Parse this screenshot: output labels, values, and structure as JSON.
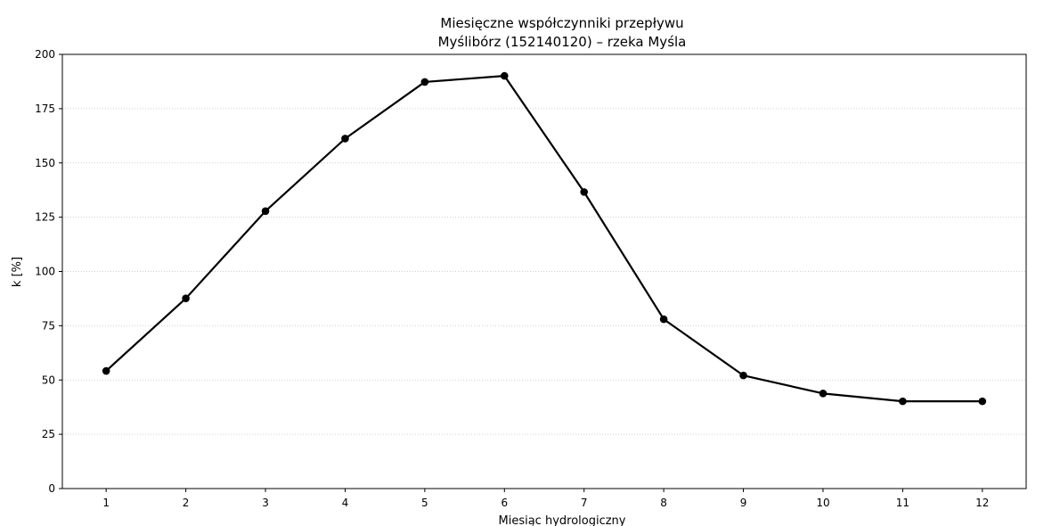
{
  "chart_data": {
    "type": "line",
    "title": "Miesięczne współczynniki przepływu",
    "subtitle": "Myślibórz (152140120) – rzeka Myśla",
    "xlabel": "Miesiąc hydrologiczny",
    "ylabel": "k [%]",
    "x": [
      1,
      2,
      3,
      4,
      5,
      6,
      7,
      8,
      9,
      10,
      11,
      12
    ],
    "x_ticks": [
      "1",
      "2",
      "3",
      "4",
      "5",
      "6",
      "7",
      "8",
      "9",
      "10",
      "11",
      "12"
    ],
    "xlim": [
      0.45,
      12.55
    ],
    "ylim": [
      0,
      200
    ],
    "y_ticks": [
      0,
      25,
      50,
      75,
      100,
      125,
      150,
      175,
      200
    ],
    "y_tick_labels": [
      "0",
      "25",
      "50",
      "75",
      "100",
      "125",
      "150",
      "175",
      "200"
    ],
    "grid": {
      "y": true,
      "x": false,
      "style": "dotted"
    },
    "series": [
      {
        "values": [
          54.2,
          87.6,
          127.8,
          161.2,
          187.3,
          190.1,
          136.6,
          78.0,
          52.1,
          43.8,
          40.2,
          40.2
        ],
        "color": "#000000",
        "marker": "circle"
      }
    ]
  }
}
